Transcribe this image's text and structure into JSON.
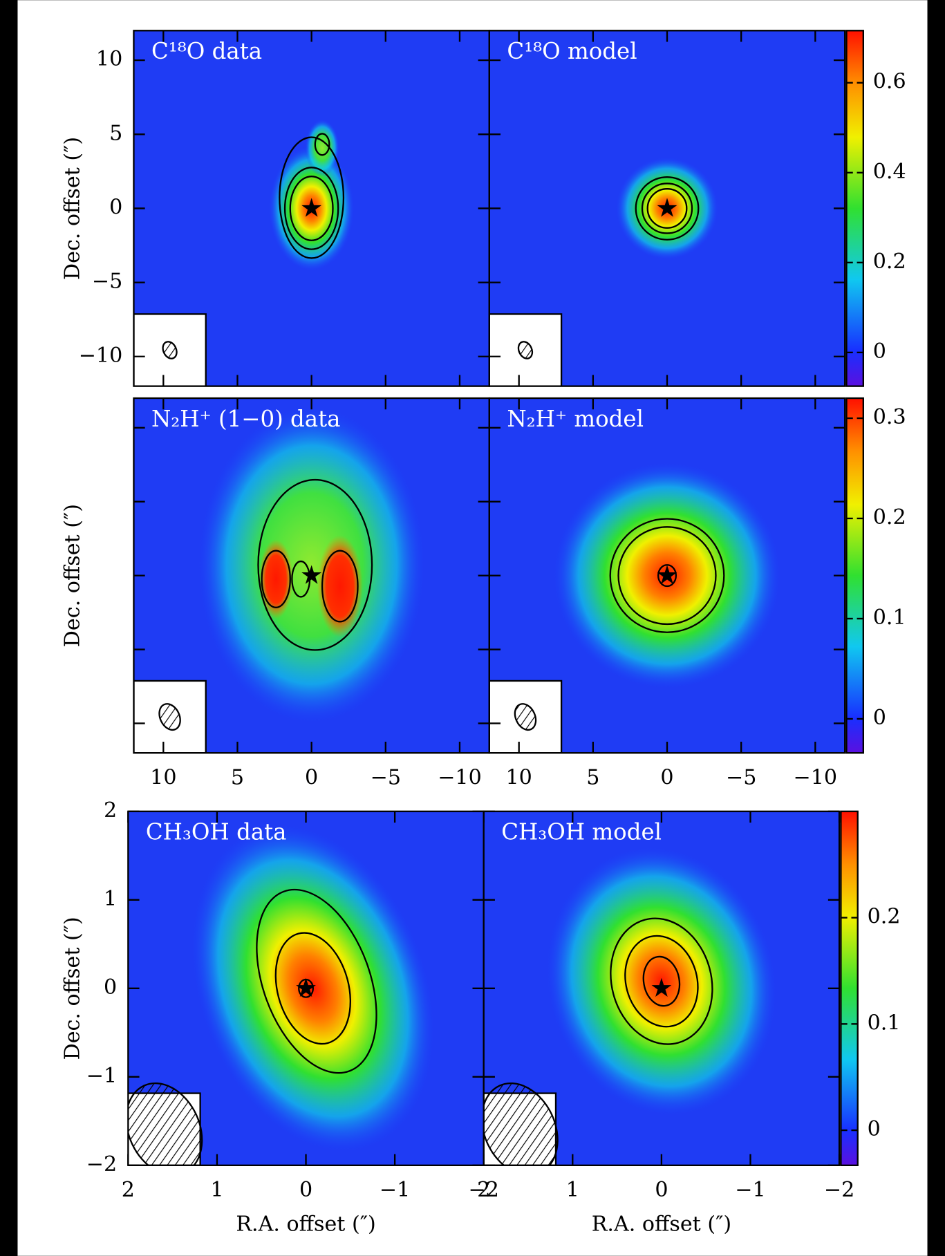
{
  "chart_data": [
    {
      "type": "image",
      "label": "C¹⁸O data",
      "ylabel": "Dec. offset (″)",
      "xlim": [
        12,
        -12
      ],
      "ylim": [
        -12,
        12
      ],
      "xticks": [
        10,
        5,
        0,
        {
          "value": -5,
          "label": "−5"
        },
        {
          "value": -10,
          "label": "−10"
        }
      ],
      "yticks": [
        {
          "value": -10,
          "label": "−10"
        },
        {
          "value": -5,
          "label": "−5"
        },
        0,
        5,
        10
      ],
      "show_xticklabels": false,
      "show_yticklabels": true
    },
    {
      "type": "image",
      "label": "C¹⁸O model",
      "xlim": [
        12,
        -12
      ],
      "ylim": [
        -12,
        12
      ],
      "xticks": [
        10,
        5,
        0,
        {
          "value": -5,
          "label": "−5"
        },
        {
          "value": -10,
          "label": "−10"
        }
      ],
      "yticks": [
        {
          "value": -10,
          "label": "−10"
        },
        {
          "value": -5,
          "label": "−5"
        },
        0,
        5,
        10
      ],
      "show_xticklabels": false,
      "show_yticklabels": false,
      "clim": [
        -0.075,
        0.716
      ],
      "cticks": [
        0,
        0.2,
        0.4,
        0.6
      ]
    },
    {
      "type": "image",
      "label": "N₂H⁺ (1−0) data",
      "ylabel": "Dec. offset (″)",
      "xlim": [
        12,
        -12
      ],
      "ylim": [
        -12,
        12
      ],
      "xticks": [
        10,
        5,
        0,
        {
          "value": -5,
          "label": "−5"
        },
        {
          "value": -10,
          "label": "−10"
        }
      ],
      "yticks": [
        {
          "value": -10,
          "label": "−10"
        },
        {
          "value": -5,
          "label": "−5"
        },
        0,
        5,
        10
      ],
      "show_xticklabels": true,
      "show_yticklabels": false
    },
    {
      "type": "image",
      "label": "N₂H⁺ model",
      "xlim": [
        12,
        -12
      ],
      "ylim": [
        -12,
        12
      ],
      "xticks": [
        10,
        5,
        0,
        {
          "value": -5,
          "label": "−5"
        },
        {
          "value": -10,
          "label": "−10"
        }
      ],
      "yticks": [
        {
          "value": -10,
          "label": "−10"
        },
        {
          "value": -5,
          "label": "−5"
        },
        0,
        5,
        10
      ],
      "show_xticklabels": true,
      "show_yticklabels": false,
      "clim": [
        -0.034,
        0.32
      ],
      "cticks": [
        0,
        0.1,
        0.2,
        0.3
      ]
    },
    {
      "type": "image",
      "label": "CH₃OH data",
      "ylabel": "Dec. offset (″)",
      "xlabel": "R.A. offset (″)",
      "xlim": [
        2,
        -2
      ],
      "ylim": [
        -2,
        2
      ],
      "xticks": [
        2,
        1,
        0,
        {
          "value": -1,
          "label": "−1"
        },
        {
          "value": -2,
          "label": "−2"
        }
      ],
      "yticks": [
        {
          "value": -2,
          "label": "−2"
        },
        {
          "value": -1,
          "label": "−1"
        },
        0,
        1,
        2
      ],
      "show_xticklabels": true,
      "show_yticklabels": true
    },
    {
      "type": "image",
      "label": "CH₃OH model",
      "xlabel": "R.A. offset (″)",
      "xlim": [
        2,
        -2
      ],
      "ylim": [
        -2,
        2
      ],
      "xticks": [
        2,
        1,
        0,
        {
          "value": -1,
          "label": "−1"
        },
        {
          "value": -2,
          "label": "−2"
        }
      ],
      "yticks": [
        {
          "value": -2,
          "label": "−2"
        },
        {
          "value": -1,
          "label": "−1"
        },
        0,
        1,
        2
      ],
      "show_xticklabels": true,
      "show_yticklabels": false,
      "clim": [
        -0.033,
        0.3
      ],
      "cticks": [
        0,
        0.1,
        0.2
      ]
    }
  ]
}
